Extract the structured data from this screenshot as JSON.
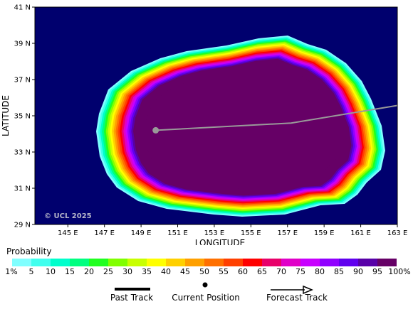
{
  "map": {
    "lat_ticks": [
      "41 N",
      "39 N",
      "37 N",
      "35 N",
      "33 N",
      "31 N",
      "29 N"
    ],
    "lon_ticks": [
      "145 E",
      "147 E",
      "149 E",
      "151 E",
      "153 E",
      "155 E",
      "157 E",
      "159 E",
      "161 E",
      "163 E"
    ],
    "ylabel": "LATITUDE",
    "xlabel": "LONGITUDE",
    "watermark": "© UCL 2025",
    "ocean_color": "#00006e",
    "track_color": "#999999",
    "current_position": {
      "lon": 149.8,
      "lat": 34.2
    },
    "forecast_track": [
      {
        "lon": 149.8,
        "lat": 34.2
      },
      {
        "lon": 157.2,
        "lat": 34.6
      },
      {
        "lon": 163.2,
        "lat": 35.6
      }
    ]
  },
  "legend": {
    "title": "Probability",
    "colors": [
      "#80ffff",
      "#40ffee",
      "#00ffcc",
      "#00ff80",
      "#20ff20",
      "#80ff00",
      "#c8ff00",
      "#ffff00",
      "#ffd000",
      "#ffa000",
      "#ff7000",
      "#ff4000",
      "#ff0000",
      "#e8006a",
      "#e000c8",
      "#c800ff",
      "#9000ff",
      "#6000ee",
      "#5800a8",
      "#660066"
    ],
    "labels": [
      "1%",
      "5",
      "10",
      "15",
      "20",
      "25",
      "30",
      "35",
      "40",
      "45",
      "50",
      "55",
      "60",
      "65",
      "70",
      "75",
      "80",
      "85",
      "90",
      "95",
      "100%"
    ]
  },
  "key": {
    "past_track": "Past Track",
    "current_position": "Current Position",
    "forecast_track": "Forecast Track"
  }
}
